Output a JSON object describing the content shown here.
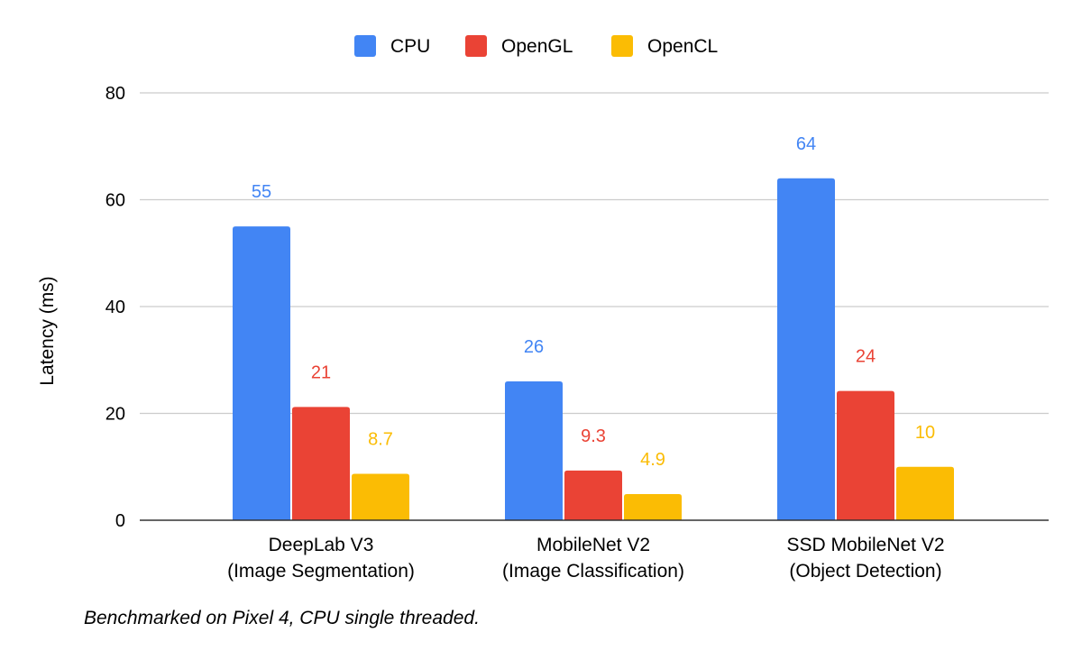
{
  "chart_data": {
    "type": "bar",
    "categories": [
      [
        "DeepLab V3",
        "(Image Segmentation)"
      ],
      [
        "MobileNet V2",
        "(Image Classification)"
      ],
      [
        "SSD MobileNet V2",
        "(Object Detection)"
      ]
    ],
    "series": [
      {
        "name": "CPU",
        "values": [
          55,
          26,
          64
        ],
        "labels": [
          "55",
          "26",
          "64"
        ],
        "color": "#4285f4"
      },
      {
        "name": "OpenGL",
        "values": [
          21.2,
          9.3,
          24.2
        ],
        "labels": [
          "21",
          "9.3",
          "24"
        ],
        "color": "#ea4335"
      },
      {
        "name": "OpenCL",
        "values": [
          8.7,
          4.9,
          10
        ],
        "labels": [
          "8.7",
          "4.9",
          "10"
        ],
        "color": "#fbbc04"
      }
    ],
    "title": "",
    "xlabel": "",
    "ylabel": "Latency (ms)",
    "ylim": [
      0,
      80
    ],
    "yticks": [
      0,
      20,
      40,
      60,
      80
    ],
    "grid": true,
    "legend_position": "top-center",
    "footnote": "Benchmarked on Pixel 4, CPU single threaded."
  }
}
